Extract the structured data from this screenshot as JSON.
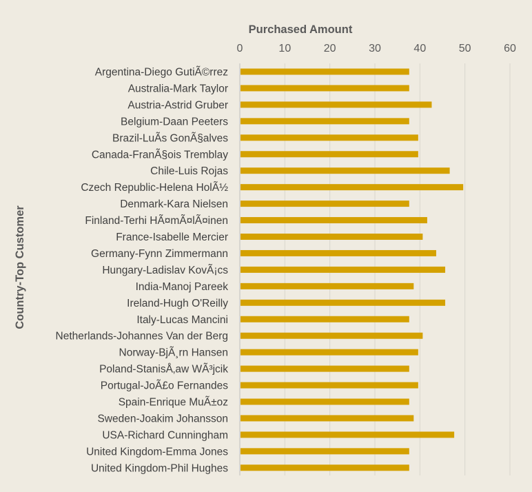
{
  "chart_data": {
    "type": "bar",
    "orientation": "horizontal",
    "title": "",
    "xlabel": "Purchased Amount",
    "ylabel": "Country-Top Customer",
    "xlim": [
      0,
      60
    ],
    "x_ticks": [
      0,
      10,
      20,
      30,
      40,
      50,
      60
    ],
    "x_axis_position": "top",
    "grid": true,
    "legend": "none",
    "bar_color": "#d4a100",
    "background_color": "#efebe1",
    "categories": [
      "Argentina-Diego GutiÃ©rrez",
      "Australia-Mark Taylor",
      "Austria-Astrid Gruber",
      "Belgium-Daan Peeters",
      "Brazil-LuÃ­s GonÃ§alves",
      "Canada-FranÃ§ois Tremblay",
      "Chile-Luis Rojas",
      "Czech Republic-Helena HolÃ½",
      "Denmark-Kara Nielsen",
      "Finland-Terhi HÃ¤mÃ¤lÃ¤inen",
      "France-Isabelle Mercier",
      "Germany-Fynn Zimmermann",
      "Hungary-Ladislav KovÃ¡cs",
      "India-Manoj Pareek",
      "Ireland-Hugh O'Reilly",
      "Italy-Lucas Mancini",
      "Netherlands-Johannes Van der Berg",
      "Norway-BjÃ¸rn Hansen",
      "Poland-StanisÅ‚aw WÃ³jcik",
      "Portugal-JoÃ£o Fernandes",
      "Spain-Enrique MuÃ±oz",
      "Sweden-Joakim Johansson",
      "USA-Richard Cunningham",
      "United Kingdom-Emma Jones",
      "United Kingdom-Phil Hughes"
    ],
    "values": [
      37.62,
      37.62,
      42.62,
      37.62,
      39.62,
      39.62,
      46.62,
      49.62,
      37.62,
      41.62,
      40.62,
      43.62,
      45.62,
      38.62,
      45.62,
      37.62,
      40.62,
      39.62,
      37.62,
      39.62,
      37.62,
      38.62,
      47.62,
      37.62,
      37.62
    ]
  }
}
